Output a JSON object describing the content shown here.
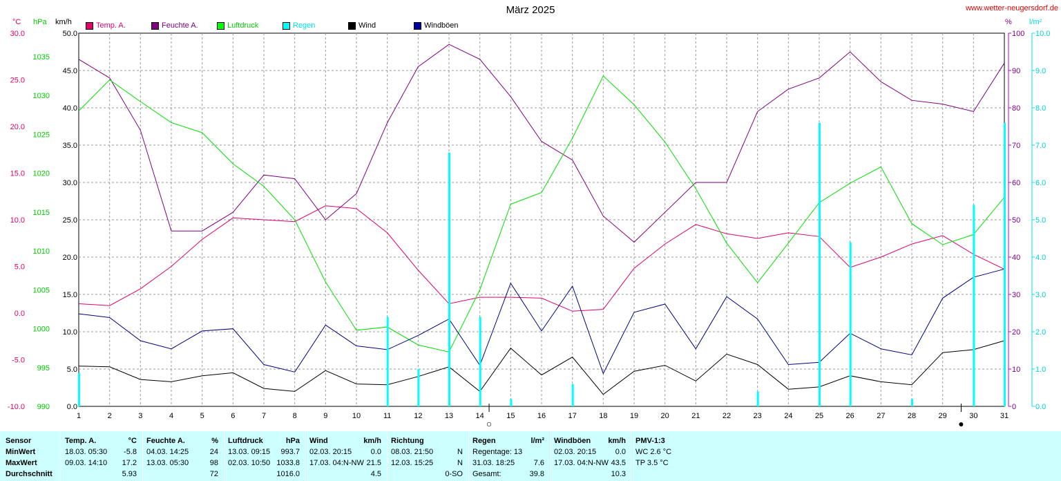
{
  "title": "März 2025",
  "site": "www.wetter-neugersdorf.de",
  "units": {
    "temp": "°C",
    "pressure": "hPa",
    "wind": "km/h",
    "humidity": "%",
    "rain": "l/m²"
  },
  "legend": [
    {
      "label": "Temp. A.",
      "color": "#e0006a",
      "text_color": "#e0006a"
    },
    {
      "label": "Feuchte A.",
      "color": "#800080",
      "text_color": "#800080"
    },
    {
      "label": "Luftdruck",
      "color": "#00ff00",
      "text_color": "#00cc00"
    },
    {
      "label": "Regen",
      "color": "#00ffff",
      "text_color": "#00e0e0"
    },
    {
      "label": "Wind",
      "color": "#000000",
      "text_color": "#000000"
    },
    {
      "label": "Windböen",
      "color": "#0000a0",
      "text_color": "#000000"
    }
  ],
  "colors": {
    "grid": "#999999",
    "temp": "#e0006a",
    "humidity": "#800080",
    "pressure": "#00e000",
    "rain": "#00ffff",
    "wind": "#000000",
    "gusts": "#000080",
    "table_bg": "#ccffff"
  },
  "chart_data": {
    "type": "line",
    "x": [
      1,
      2,
      3,
      4,
      5,
      6,
      7,
      8,
      9,
      10,
      11,
      12,
      13,
      14,
      15,
      16,
      17,
      18,
      19,
      20,
      21,
      22,
      23,
      24,
      25,
      26,
      27,
      28,
      29,
      30,
      31
    ],
    "xlim": [
      1,
      31
    ],
    "axes": {
      "temp": {
        "label": "°C",
        "ylim": [
          -10,
          30
        ],
        "ticks": [
          "30.0",
          "25.0",
          "20.0",
          "15.0",
          "10.0",
          "5.0",
          "0.0",
          "-5.0",
          "-10.0"
        ]
      },
      "pressure": {
        "label": "hPa",
        "ylim": [
          990,
          1038
        ],
        "ticks": [
          "1035",
          "1030",
          "1025",
          "1020",
          "1015",
          "1010",
          "1005",
          "1000",
          "995",
          "990"
        ]
      },
      "wind": {
        "label": "km/h",
        "ylim": [
          0,
          50
        ],
        "ticks": [
          "50.0",
          "45.0",
          "40.0",
          "35.0",
          "30.0",
          "25.0",
          "20.0",
          "15.0",
          "10.0",
          "5.0",
          "0.0"
        ]
      },
      "humidity": {
        "label": "%",
        "ylim": [
          0,
          100
        ],
        "ticks": [
          "100",
          "90",
          "80",
          "70",
          "60",
          "50",
          "40",
          "30",
          "20",
          "10",
          "0"
        ]
      },
      "rain": {
        "label": "l/m²",
        "ylim": [
          0,
          10
        ],
        "ticks": [
          "10.0",
          "9.0",
          "8.0",
          "7.0",
          "6.0",
          "5.0",
          "4.0",
          "3.0",
          "2.0",
          "1.0",
          "0.0"
        ]
      }
    },
    "series": [
      {
        "name": "Temp. A.",
        "axis": "temp",
        "values": [
          1.0,
          0.8,
          2.6,
          5.0,
          7.9,
          10.2,
          10.0,
          9.8,
          11.5,
          11.2,
          8.6,
          4.6,
          1.0,
          1.7,
          1.7,
          1.6,
          0.2,
          0.4,
          4.8,
          7.4,
          9.5,
          8.5,
          8.0,
          8.6,
          8.2,
          4.9,
          6.0,
          7.4,
          8.3,
          6.3,
          4.7
        ]
      },
      {
        "name": "Feuchte A.",
        "axis": "humidity",
        "values": [
          93,
          88,
          74,
          47,
          47,
          52,
          62,
          61,
          50,
          57,
          76,
          91,
          97,
          93,
          83,
          71,
          66,
          51,
          44,
          52,
          60,
          60,
          79,
          85,
          88,
          95,
          87,
          82,
          81,
          79,
          92
        ]
      },
      {
        "name": "Luftdruck",
        "axis": "pressure",
        "values": [
          1028.0,
          1032.0,
          1029.2,
          1026.5,
          1025.2,
          1021.2,
          1018.3,
          1014.0,
          1006.0,
          999.8,
          1000.2,
          997.9,
          997.0,
          1005.0,
          1016.0,
          1017.5,
          1024.5,
          1032.5,
          1028.8,
          1024.0,
          1018.0,
          1011.0,
          1005.9,
          1011.0,
          1016.2,
          1018.7,
          1020.8,
          1013.5,
          1010.8,
          1012.1,
          1016.9
        ]
      },
      {
        "name": "Wind",
        "axis": "wind",
        "values": [
          5.4,
          5.3,
          3.6,
          3.3,
          4.1,
          4.5,
          2.4,
          2.0,
          4.8,
          3.0,
          2.9,
          4.0,
          5.3,
          2.0,
          7.8,
          4.2,
          6.6,
          1.6,
          4.7,
          5.5,
          3.4,
          7.0,
          5.6,
          2.3,
          2.6,
          4.1,
          3.3,
          2.9,
          7.2,
          7.6,
          8.8
        ]
      },
      {
        "name": "Windböen",
        "axis": "wind",
        "values": [
          12.4,
          11.9,
          8.8,
          7.7,
          10.1,
          10.4,
          5.6,
          4.6,
          10.9,
          8.1,
          7.6,
          9.5,
          11.7,
          5.5,
          16.5,
          10.1,
          16.1,
          4.4,
          12.6,
          13.7,
          7.7,
          14.7,
          11.7,
          5.6,
          5.9,
          9.8,
          7.7,
          6.9,
          14.5,
          17.3,
          18.4
        ]
      },
      {
        "name": "Regen",
        "axis": "rain",
        "type": "bar",
        "values": [
          0.9,
          0,
          0,
          0,
          0,
          0,
          0,
          0,
          0,
          0,
          2.4,
          1.0,
          6.8,
          2.4,
          0.2,
          0,
          0.6,
          0,
          0,
          0,
          0,
          0,
          0.4,
          0,
          7.6,
          4.4,
          0,
          0.2,
          0,
          5.4,
          7.6
        ]
      }
    ],
    "moon_phases": [
      {
        "day": 14.3,
        "symbol": "○"
      },
      {
        "day": 29.6,
        "symbol": "●"
      }
    ]
  },
  "table": {
    "row_labels": [
      "Sensor",
      "MinWert",
      "MaxWert",
      "Durchschnitt"
    ],
    "columns": [
      {
        "title": "Temp. A.",
        "unit": "°C",
        "min_time": "18.03.  05:30",
        "min_val": "-5.8",
        "max_time": "09.03.  14:10",
        "max_val": "17.2",
        "avg": "5.93"
      },
      {
        "title": "Feuchte A.",
        "unit": "%",
        "min_time": "04.03.  14:25",
        "min_val": "24",
        "max_time": "13.03.  05:30",
        "max_val": "98",
        "avg": "72"
      },
      {
        "title": "Luftdruck",
        "unit": "hPa",
        "min_time": "13.03.  09:15",
        "min_val": "993.7",
        "max_time": "02.03.  10:50",
        "max_val": "1033.8",
        "avg": "1016.0"
      },
      {
        "title": "Wind",
        "unit": "km/h",
        "min_time": "02.03.  20:15",
        "min_val": "0.0",
        "max_time": "17.03.  04:N-NW",
        "max_val": "21.5",
        "avg": "4.5"
      },
      {
        "title": "Richtung",
        "unit": "",
        "min_time": "08.03.  21:50",
        "min_val": "N",
        "max_time": "12.03.  15:25",
        "max_val": "N",
        "avg": "0-SO"
      },
      {
        "title": "Regen",
        "unit": "l/m²",
        "min_time": "Regentage: 13",
        "min_val": "",
        "max_time": "31.03.  18:25",
        "max_val": "7.6",
        "avg_label": "Gesamt:",
        "avg": "39.8"
      },
      {
        "title": "Windböen",
        "unit": "km/h",
        "min_time": "02.03.  20:15",
        "min_val": "0.0",
        "max_time": "17.03.  04:N-NW",
        "max_val": "43.5",
        "avg": "10.3"
      },
      {
        "title": "PMV-1:3",
        "unit": "",
        "min_time": "WC 2.6 °C",
        "min_val": "",
        "max_time": "TP 3.5 °C",
        "max_val": "",
        "avg": ""
      }
    ]
  }
}
